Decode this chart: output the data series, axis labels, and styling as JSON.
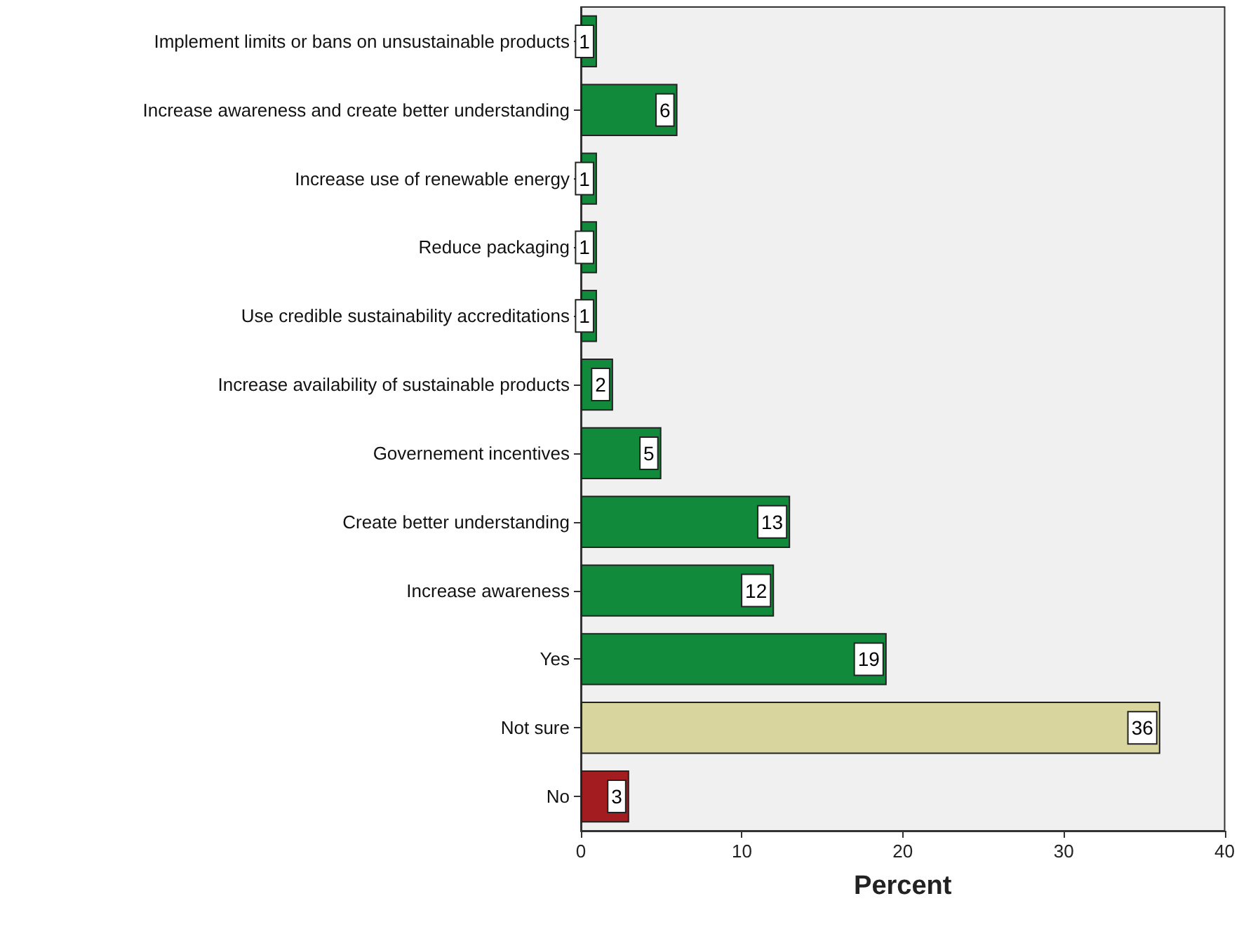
{
  "chart_data": {
    "type": "bar",
    "orientation": "horizontal",
    "xlabel": "Percent",
    "categories": [
      "Implement limits or bans on unsustainable products",
      "Increase awareness and create better understanding",
      "Increase use of renewable energy",
      "Reduce packaging",
      "Use credible sustainability accreditations",
      "Increase availability of sustainable products",
      "Governement incentives",
      "Create better understanding",
      "Increase awareness",
      "Yes",
      "Not sure",
      "No"
    ],
    "values": [
      1,
      6,
      1,
      1,
      1,
      2,
      5,
      13,
      12,
      19,
      36,
      3
    ],
    "colors": [
      "#128a3c",
      "#128a3c",
      "#128a3c",
      "#128a3c",
      "#128a3c",
      "#128a3c",
      "#128a3c",
      "#128a3c",
      "#128a3c",
      "#128a3c",
      "#d9d59e",
      "#a31c1f"
    ],
    "xlim": [
      0,
      40
    ],
    "xticks": [
      0,
      10,
      20,
      30,
      40
    ],
    "data_labels": true,
    "grid": false
  }
}
